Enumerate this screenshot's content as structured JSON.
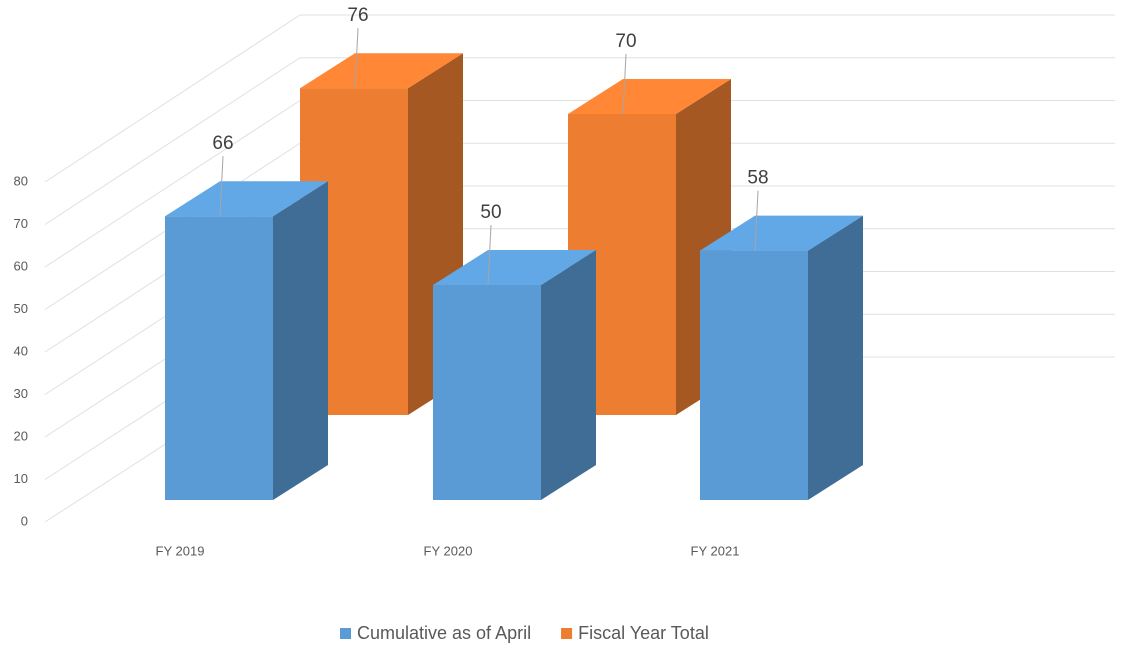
{
  "chart_data": {
    "type": "bar3d",
    "categories": [
      "FY 2019",
      "FY 2020",
      "FY 2021"
    ],
    "series": [
      {
        "name": "Cumulative as of April",
        "color": "#5b9bd5",
        "values": [
          66,
          50,
          58
        ]
      },
      {
        "name": "Fiscal Year Total",
        "color": "#ed7d31",
        "values": [
          76,
          70,
          null
        ]
      }
    ],
    "ylim": [
      0,
      80
    ],
    "yticks": [
      0,
      10,
      20,
      30,
      40,
      50,
      60,
      70,
      80
    ],
    "grid": true,
    "legend": "bottom"
  }
}
